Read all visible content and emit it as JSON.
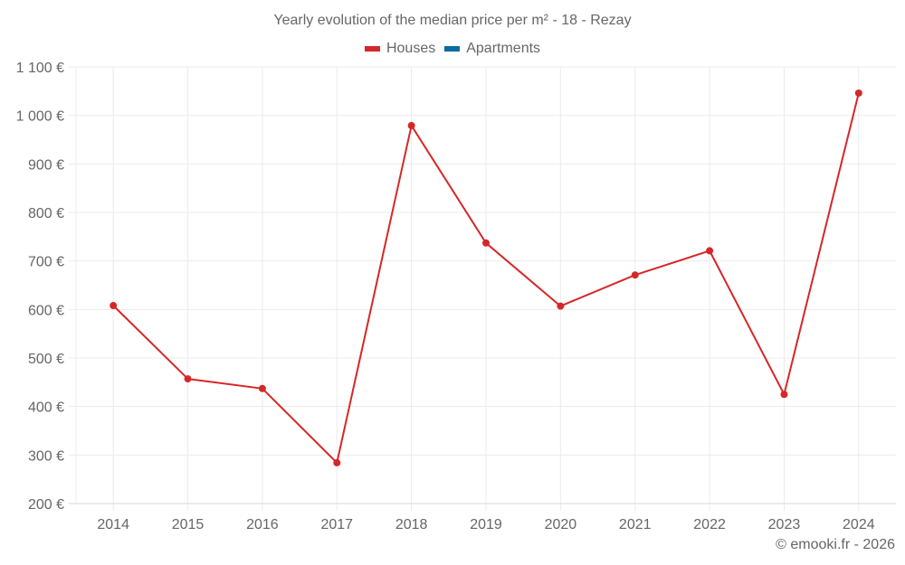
{
  "chart_data": {
    "type": "line",
    "title": "Yearly evolution of the median price per m² - 18 - Rezay",
    "xlabel": "",
    "ylabel": "",
    "categories": [
      "2014",
      "2015",
      "2016",
      "2017",
      "2018",
      "2019",
      "2020",
      "2021",
      "2022",
      "2023",
      "2024"
    ],
    "series": [
      {
        "name": "Houses",
        "color": "#d62728",
        "values": [
          608,
          457,
          437,
          284,
          979,
          737,
          607,
          671,
          721,
          425,
          1046
        ]
      },
      {
        "name": "Apartments",
        "color": "#0b6ba3",
        "values": []
      }
    ],
    "ylim": [
      200,
      1100
    ],
    "yticks": [
      200,
      300,
      400,
      500,
      600,
      700,
      800,
      900,
      1000,
      1100
    ],
    "ytick_labels": [
      "200 €",
      "300 €",
      "400 €",
      "500 €",
      "600 €",
      "700 €",
      "800 €",
      "900 €",
      "1 000 €",
      "1 100 €"
    ],
    "grid": true,
    "legend_position": "top"
  },
  "legend": [
    {
      "label": "Houses",
      "color": "#d62728"
    },
    {
      "label": "Apartments",
      "color": "#0b6ba3"
    }
  ],
  "footer": "© emooki.fr - 2026"
}
